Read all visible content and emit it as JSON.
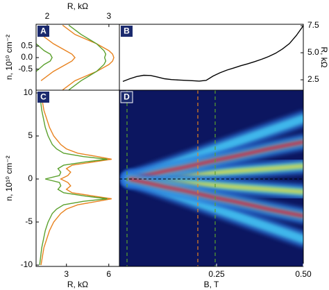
{
  "chart_data": [
    {
      "type": "line",
      "label": "A",
      "xlabel": "R, kΩ",
      "ylabel": "n, 10¹⁰ cm⁻²",
      "xlim": [
        1.82,
        3.17
      ],
      "ylim": [
        -1.41,
        1.44
      ],
      "xticks": [
        2,
        3
      ],
      "yticks": [
        0.5,
        {
          "value": 0,
          "label": "0.0"
        },
        -0.5
      ],
      "y": [
        1.4,
        1.0,
        0.6,
        0.3,
        0.15,
        0,
        -0.15,
        -0.3,
        -0.6,
        -1.0,
        -1.4
      ],
      "series": [
        {
          "color": "#e8821e",
          "values": [
            2.25,
            2.45,
            2.8,
            3.0,
            3.06,
            3.08,
            3.06,
            3.0,
            2.8,
            2.45,
            2.25
          ]
        },
        {
          "color": "#5aa02c",
          "values": [
            2.35,
            2.55,
            2.8,
            2.92,
            2.95,
            2.93,
            2.95,
            2.92,
            2.8,
            2.55,
            2.35
          ]
        },
        {
          "color": "#e8821e",
          "values": [
            null,
            1.9,
            2.1,
            2.3,
            2.4,
            2.45,
            2.4,
            2.3,
            2.1,
            1.9,
            null
          ]
        },
        {
          "color": "#5aa02c",
          "values": [
            null,
            null,
            1.82,
            1.95,
            2.05,
            2.08,
            2.05,
            1.95,
            1.82,
            null,
            null
          ]
        }
      ]
    },
    {
      "type": "line",
      "label": "B",
      "ylabel": "R, kΩ",
      "xlim": [
        -0.03,
        0.5
      ],
      "ylim": [
        1.54,
        7.63
      ],
      "yticks": [
        7.5,
        {
          "value": 5,
          "label": "5.0"
        },
        2.5
      ],
      "color": "#000000",
      "x": [
        -0.02,
        0,
        0.02,
        0.04,
        0.06,
        0.08,
        0.1,
        0.12,
        0.14,
        0.16,
        0.18,
        0.2,
        0.22,
        0.24,
        0.26,
        0.28,
        0.3,
        0.32,
        0.34,
        0.36,
        0.38,
        0.4,
        0.42,
        0.44,
        0.46,
        0.48,
        0.5
      ],
      "values": [
        2.35,
        2.6,
        2.8,
        2.92,
        2.9,
        2.75,
        2.6,
        2.52,
        2.48,
        2.45,
        2.42,
        2.38,
        2.45,
        2.85,
        3.15,
        3.4,
        3.6,
        3.8,
        3.98,
        4.18,
        4.4,
        4.65,
        4.95,
        5.35,
        5.85,
        6.6,
        7.5
      ]
    },
    {
      "type": "line",
      "label": "C",
      "xlabel": "R, kΩ",
      "ylabel": "n, 10¹⁰ cm⁻²",
      "xlim": [
        0.85,
        6.75
      ],
      "ylim": [
        -10.16,
        10.32
      ],
      "xticks": [
        3,
        6
      ],
      "yticks": [
        10,
        5,
        0,
        -5,
        -10
      ],
      "y": [
        10,
        8,
        6,
        5,
        4,
        3.5,
        3,
        2.6,
        2.3,
        2,
        1.6,
        1.2,
        0.8,
        0.4,
        0,
        -0.4,
        -0.8,
        -1.2,
        -1.6,
        -2,
        -2.3,
        -2.6,
        -3,
        -3.5,
        -4,
        -5,
        -6,
        -8,
        -10
      ],
      "series": [
        {
          "color": "#e8821e",
          "values": [
            1.2,
            1.4,
            1.8,
            2.1,
            2.6,
            3.0,
            3.8,
            5.2,
            6.2,
            5.0,
            3.4,
            3.0,
            3.3,
            3.1,
            2.6,
            3.1,
            3.3,
            3.0,
            3.4,
            5.0,
            6.2,
            5.2,
            3.8,
            3.0,
            2.6,
            2.1,
            1.8,
            1.4,
            1.2
          ]
        },
        {
          "color": "#5aa02c",
          "values": [
            1.1,
            1.25,
            1.5,
            1.7,
            2.0,
            2.3,
            2.8,
            4.2,
            5.9,
            4.4,
            2.8,
            2.4,
            2.6,
            2.5,
            1.5,
            2.5,
            2.6,
            2.4,
            2.8,
            4.4,
            5.9,
            4.2,
            2.8,
            2.3,
            2.0,
            1.7,
            1.5,
            1.25,
            1.1
          ]
        }
      ]
    },
    {
      "type": "fan",
      "label": "D",
      "xlabel": "B, T",
      "xlim": [
        -0.03,
        0.5
      ],
      "ylim": [
        -10.16,
        10.32
      ],
      "xticks": [
        0.25,
        {
          "value": 0.5,
          "label": "0.50"
        }
      ],
      "background": "#0c1660",
      "x": [
        0,
        0.05,
        0.1,
        0.15,
        0.2,
        0.25,
        0.3,
        0.35,
        0.4,
        0.45,
        0.5
      ],
      "series": [
        {
          "color": "#3fb8ee",
          "values": [
            0,
            0.7,
            1.4,
            2.1,
            2.8,
            3.5,
            4.2,
            4.9,
            5.6,
            6.3,
            7.0
          ]
        },
        {
          "color": "#3fb8ee",
          "values": [
            0,
            -0.7,
            -1.4,
            -2.1,
            -2.8,
            -3.5,
            -4.2,
            -4.9,
            -5.6,
            -6.3,
            -7.0
          ]
        },
        {
          "color": "#f2e02a",
          "values": [
            0,
            0.15,
            0.3,
            0.45,
            0.6,
            0.75,
            0.9,
            1.05,
            1.2,
            1.35,
            1.5
          ]
        },
        {
          "color": "#f2e02a",
          "values": [
            0,
            -0.15,
            -0.3,
            -0.45,
            -0.6,
            -0.75,
            -0.9,
            -1.05,
            -1.2,
            -1.35,
            -1.5
          ]
        },
        {
          "color": "#e4141c",
          "values": [
            0,
            0.45,
            0.9,
            1.3,
            1.75,
            2.2,
            2.6,
            3.05,
            3.5,
            3.9,
            4.3
          ]
        },
        {
          "color": "#e4141c",
          "values": [
            0,
            -0.45,
            -0.9,
            -1.3,
            -1.75,
            -2.2,
            -2.6,
            -3.05,
            -3.5,
            -3.9,
            -4.3
          ]
        },
        {
          "color": "#e4141c",
          "values": [
            null,
            null,
            null,
            null,
            null,
            null,
            null,
            0,
            0,
            0,
            0
          ]
        }
      ],
      "vlines": [
        {
          "x": -0.008,
          "color": "#5aa02c"
        },
        {
          "x": 0.196,
          "color": "#e8821e"
        },
        {
          "x": 0.246,
          "color": "#5aa02c"
        }
      ],
      "hline": 0
    }
  ]
}
